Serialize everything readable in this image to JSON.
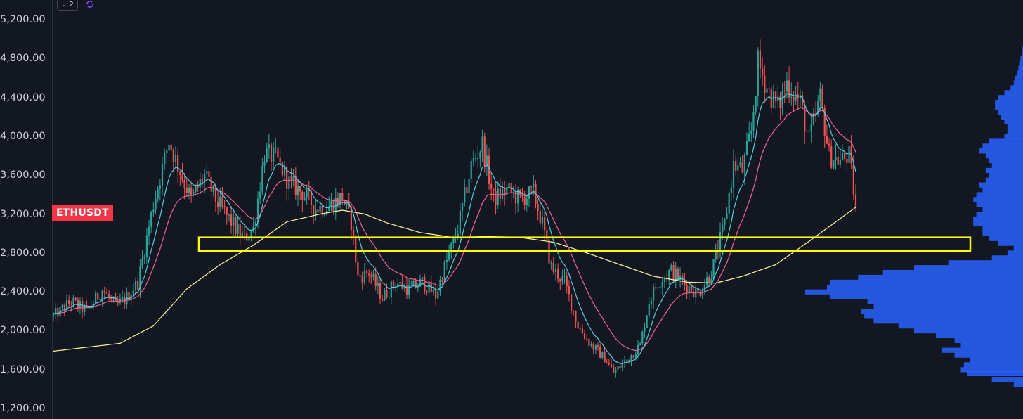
{
  "chart_data": {
    "type": "candlestick",
    "symbol": "ETHUSDT",
    "indicators_collapsed_count": "2",
    "y_ticks": [
      {
        "label": "5,200.00",
        "value": 5200
      },
      {
        "label": "4,800.00",
        "value": 4800
      },
      {
        "label": "4,400.00",
        "value": 4400
      },
      {
        "label": "4,000.00",
        "value": 4000
      },
      {
        "label": "3,600.00",
        "value": 3600
      },
      {
        "label": "3,200.00",
        "value": 3200
      },
      {
        "label": "2,800.00",
        "value": 2800
      },
      {
        "label": "2,400.00",
        "value": 2400
      },
      {
        "label": "2,000.00",
        "value": 2000
      },
      {
        "label": "1,600.00",
        "value": 1600
      },
      {
        "label": "1,200.00",
        "value": 1200
      }
    ],
    "ylim": [
      1100,
      5400
    ],
    "price_path": [
      [
        0,
        2150
      ],
      [
        8,
        2300
      ],
      [
        15,
        2200
      ],
      [
        22,
        2420
      ],
      [
        28,
        2250
      ],
      [
        32,
        2320
      ],
      [
        38,
        2500
      ],
      [
        45,
        3300
      ],
      [
        52,
        3950
      ],
      [
        56,
        3700
      ],
      [
        62,
        3350
      ],
      [
        68,
        3600
      ],
      [
        73,
        3350
      ],
      [
        78,
        3180
      ],
      [
        82,
        3050
      ],
      [
        86,
        2950
      ],
      [
        90,
        3050
      ],
      [
        95,
        3820
      ],
      [
        100,
        3780
      ],
      [
        106,
        3520
      ],
      [
        112,
        3420
      ],
      [
        118,
        3260
      ],
      [
        124,
        3280
      ],
      [
        130,
        3380
      ],
      [
        134,
        3120
      ],
      [
        137,
        2550
      ],
      [
        142,
        2600
      ],
      [
        148,
        2340
      ],
      [
        154,
        2500
      ],
      [
        160,
        2420
      ],
      [
        166,
        2500
      ],
      [
        172,
        2360
      ],
      [
        176,
        2650
      ],
      [
        182,
        3050
      ],
      [
        188,
        3700
      ],
      [
        193,
        3920
      ],
      [
        198,
        3350
      ],
      [
        204,
        3450
      ],
      [
        210,
        3350
      ],
      [
        216,
        3420
      ],
      [
        220,
        3100
      ],
      [
        224,
        2650
      ],
      [
        230,
        2500
      ],
      [
        236,
        2050
      ],
      [
        242,
        1850
      ],
      [
        248,
        1720
      ],
      [
        252,
        1570
      ],
      [
        258,
        1700
      ],
      [
        264,
        1850
      ],
      [
        268,
        2300
      ],
      [
        272,
        2500
      ],
      [
        278,
        2620
      ],
      [
        284,
        2480
      ],
      [
        290,
        2380
      ],
      [
        296,
        2600
      ],
      [
        302,
        3100
      ],
      [
        306,
        3700
      ],
      [
        310,
        3650
      ],
      [
        314,
        4050
      ],
      [
        317,
        4750
      ],
      [
        322,
        4450
      ],
      [
        326,
        4300
      ],
      [
        330,
        4550
      ],
      [
        336,
        4350
      ],
      [
        340,
        3950
      ],
      [
        345,
        4400
      ],
      [
        349,
        3800
      ],
      [
        354,
        3750
      ],
      [
        358,
        3800
      ],
      [
        361,
        3270
      ]
    ],
    "price_path_x_unit": "bar index (approximate)",
    "moving_averages": [
      {
        "color": "#4dd0e1",
        "period_hint": "fast"
      },
      {
        "color": "#f06292",
        "period_hint": "medium"
      },
      {
        "color": "#fff59d",
        "period_hint": "slow"
      }
    ],
    "slow_ma_path": [
      [
        0,
        1790
      ],
      [
        30,
        1870
      ],
      [
        45,
        2050
      ],
      [
        60,
        2430
      ],
      [
        75,
        2680
      ],
      [
        90,
        2880
      ],
      [
        105,
        3120
      ],
      [
        120,
        3200
      ],
      [
        130,
        3240
      ],
      [
        140,
        3200
      ],
      [
        150,
        3110
      ],
      [
        165,
        3010
      ],
      [
        180,
        2960
      ],
      [
        195,
        2970
      ],
      [
        210,
        2960
      ],
      [
        225,
        2910
      ],
      [
        240,
        2800
      ],
      [
        255,
        2680
      ],
      [
        270,
        2560
      ],
      [
        285,
        2500
      ],
      [
        298,
        2490
      ],
      [
        310,
        2560
      ],
      [
        325,
        2680
      ],
      [
        340,
        2920
      ],
      [
        355,
        3170
      ],
      [
        361,
        3270
      ]
    ],
    "highlight_zone": {
      "low": 2820,
      "high": 2960,
      "color": "#ffff00"
    },
    "volume_profile": {
      "color": "#2962ff",
      "rows": [
        [
          1450,
          0.03
        ],
        [
          1500,
          0.1
        ],
        [
          1560,
          0.18
        ],
        [
          1600,
          0.2
        ],
        [
          1650,
          0.19
        ],
        [
          1700,
          0.17
        ],
        [
          1750,
          0.22
        ],
        [
          1800,
          0.26
        ],
        [
          1850,
          0.2
        ],
        [
          1900,
          0.22
        ],
        [
          1950,
          0.28
        ],
        [
          2000,
          0.35
        ],
        [
          2050,
          0.4
        ],
        [
          2100,
          0.48
        ],
        [
          2150,
          0.51
        ],
        [
          2200,
          0.52
        ],
        [
          2250,
          0.48
        ],
        [
          2300,
          0.5
        ],
        [
          2350,
          0.62
        ],
        [
          2400,
          0.7
        ],
        [
          2450,
          0.63
        ],
        [
          2500,
          0.62
        ],
        [
          2550,
          0.53
        ],
        [
          2600,
          0.45
        ],
        [
          2650,
          0.35
        ],
        [
          2700,
          0.24
        ],
        [
          2750,
          0.1
        ],
        [
          2800,
          0.05
        ],
        [
          2850,
          0.03
        ],
        [
          2900,
          0.08
        ],
        [
          2950,
          0.11
        ],
        [
          3000,
          0.13
        ],
        [
          3050,
          0.13
        ],
        [
          3100,
          0.16
        ],
        [
          3150,
          0.16
        ],
        [
          3200,
          0.15
        ],
        [
          3250,
          0.13
        ],
        [
          3300,
          0.15
        ],
        [
          3350,
          0.16
        ],
        [
          3400,
          0.15
        ],
        [
          3450,
          0.13
        ],
        [
          3500,
          0.14
        ],
        [
          3550,
          0.12
        ],
        [
          3600,
          0.11
        ],
        [
          3650,
          0.12
        ],
        [
          3700,
          0.1
        ],
        [
          3750,
          0.11
        ],
        [
          3800,
          0.12
        ],
        [
          3850,
          0.14
        ],
        [
          3900,
          0.13
        ],
        [
          3950,
          0.11
        ],
        [
          4000,
          0.06
        ],
        [
          4050,
          0.05
        ],
        [
          4100,
          0.05
        ],
        [
          4150,
          0.06
        ],
        [
          4200,
          0.07
        ],
        [
          4250,
          0.08
        ],
        [
          4300,
          0.09
        ],
        [
          4350,
          0.09
        ],
        [
          4400,
          0.08
        ],
        [
          4450,
          0.06
        ],
        [
          4500,
          0.04
        ],
        [
          4550,
          0.03
        ],
        [
          4600,
          0.025
        ],
        [
          4650,
          0.02
        ],
        [
          4700,
          0.015
        ],
        [
          4750,
          0.01
        ],
        [
          4800,
          0.008
        ],
        [
          4850,
          0.004
        ],
        [
          4900,
          0.002
        ]
      ]
    }
  }
}
